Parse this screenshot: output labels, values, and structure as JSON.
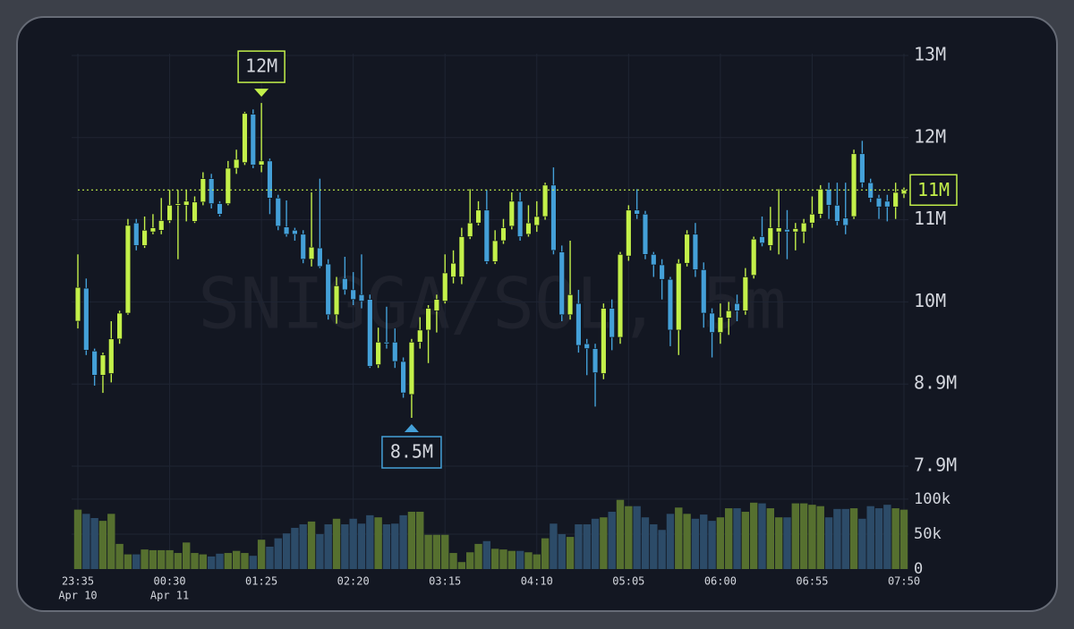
{
  "chart_data": {
    "type": "candlestick",
    "watermark": "SNIGGA/SOL, 5m",
    "categories": [
      "23:35",
      null,
      null,
      null,
      null,
      null,
      null,
      null,
      null,
      null,
      null,
      "00:30",
      null,
      null,
      null,
      null,
      null,
      null,
      null,
      null,
      null,
      null,
      "01:25",
      null,
      null,
      null,
      null,
      null,
      null,
      null,
      null,
      null,
      null,
      "02:20",
      null,
      null,
      null,
      null,
      null,
      null,
      null,
      null,
      null,
      null,
      "03:15",
      null,
      null,
      null,
      null,
      null,
      null,
      null,
      null,
      null,
      null,
      "04:10",
      null,
      null,
      null,
      null,
      null,
      null,
      null,
      null,
      null,
      null,
      "05:05",
      null,
      null,
      null,
      null,
      null,
      null,
      null,
      null,
      null,
      null,
      "06:00",
      null,
      null,
      null,
      null,
      null,
      null,
      null,
      null,
      null,
      null,
      "06:55",
      null,
      null,
      null,
      null,
      null,
      null,
      null,
      null,
      null,
      null,
      "07:50"
    ],
    "date_labels": [
      "Apr 10",
      null,
      null,
      null,
      null,
      null,
      null,
      null,
      null,
      null,
      null,
      "Apr 11",
      null,
      null,
      null,
      null,
      null,
      null,
      null,
      null,
      null,
      null,
      null,
      null,
      null,
      null,
      null,
      null,
      null,
      null,
      null,
      null,
      null,
      null,
      null,
      null,
      null,
      null,
      null,
      null,
      null,
      null,
      null,
      null,
      null,
      null,
      null,
      null,
      null,
      null,
      null,
      null,
      null,
      null,
      null,
      null,
      null,
      null,
      null,
      null,
      null,
      null,
      null,
      null,
      null,
      null,
      null,
      null,
      null,
      null,
      null,
      null,
      null,
      null,
      null,
      null,
      null,
      null,
      null,
      null,
      null,
      null,
      null,
      null,
      null,
      null,
      null,
      null,
      null,
      null,
      null,
      null,
      null,
      null,
      null,
      null,
      null,
      null,
      null,
      null
    ],
    "open": [
      9.7,
      10.11,
      9.33,
      9.03,
      9.05,
      9.48,
      9.8,
      10.92,
      10.64,
      10.81,
      10.83,
      10.95,
      11.14,
      11.14,
      10.94,
      11.18,
      11.47,
      11.16,
      11.16,
      11.6,
      11.67,
      12.27,
      11.64,
      11.69,
      11.23,
      10.87,
      10.83,
      10.78,
      10.47,
      10.61,
      10.41,
      9.78,
      10.23,
      10.09,
      10.03,
      9.97,
      9.16,
      9.44,
      9.44,
      9.2,
      8.79,
      9.44,
      9.59,
      9.83,
      9.95,
      10.25,
      10.25,
      10.75,
      10.92,
      11.08,
      10.44,
      10.7,
      10.88,
      11.19,
      10.78,
      10.89,
      11.0,
      11.39,
      10.56,
      9.78,
      9.92,
      9.42,
      9.36,
      9.05,
      9.86,
      9.5,
      10.51,
      11.08,
      11.03,
      10.53,
      10.4,
      10.22,
      9.59,
      10.42,
      10.78,
      10.34,
      9.8,
      9.56,
      9.74,
      9.92,
      9.83,
      10.27,
      10.75,
      10.64,
      10.81,
      10.84,
      10.81,
      10.81,
      10.92,
      11.03,
      11.34,
      11.14,
      10.98,
      11.0,
      11.78,
      11.42,
      11.23,
      11.19,
      11.12,
      11.28
    ],
    "high": [
      10.53,
      10.23,
      9.36,
      9.31,
      9.7,
      9.83,
      10.97,
      10.97,
      11.0,
      11.03,
      11.23,
      11.33,
      11.33,
      11.33,
      11.25,
      11.55,
      11.53,
      11.19,
      11.69,
      11.83,
      12.3,
      12.33,
      12.41,
      11.72,
      11.27,
      11.2,
      10.86,
      10.83,
      11.3,
      11.47,
      10.47,
      10.25,
      10.5,
      10.31,
      10.53,
      10.03,
      9.62,
      9.88,
      9.61,
      9.25,
      9.48,
      9.75,
      9.9,
      10.03,
      10.53,
      10.58,
      10.86,
      11.34,
      11.19,
      11.33,
      10.83,
      10.97,
      11.3,
      11.3,
      11.14,
      11.19,
      11.42,
      11.61,
      10.64,
      10.7,
      10.09,
      9.48,
      9.42,
      9.92,
      9.97,
      10.56,
      11.14,
      11.34,
      11.07,
      10.56,
      10.47,
      10.25,
      10.47,
      10.83,
      10.92,
      10.43,
      9.86,
      9.92,
      9.94,
      10.03,
      10.36,
      10.75,
      11.0,
      11.12,
      11.34,
      11.08,
      10.92,
      10.97,
      11.25,
      11.39,
      11.42,
      11.42,
      11.42,
      11.83,
      11.94,
      11.47,
      11.27,
      11.27,
      11.42,
      11.36
    ],
    "low": [
      9.61,
      9.28,
      8.9,
      8.81,
      8.94,
      9.42,
      9.78,
      10.58,
      10.61,
      10.78,
      10.78,
      10.92,
      10.47,
      10.94,
      10.92,
      11.14,
      11.1,
      11.0,
      11.14,
      11.53,
      11.64,
      11.6,
      11.55,
      11.03,
      10.83,
      10.75,
      10.7,
      10.42,
      10.38,
      10.36,
      9.72,
      9.67,
      10.03,
      9.9,
      9.86,
      9.12,
      9.12,
      9.36,
      9.12,
      8.75,
      8.5,
      9.36,
      9.18,
      9.56,
      9.92,
      10.17,
      10.16,
      10.72,
      10.89,
      10.41,
      10.41,
      10.66,
      10.84,
      10.7,
      10.75,
      10.81,
      10.96,
      10.53,
      9.7,
      9.72,
      9.31,
      9.03,
      8.64,
      8.98,
      9.34,
      9.42,
      10.45,
      10.97,
      10.47,
      10.25,
      9.97,
      9.39,
      9.28,
      10.38,
      10.25,
      9.62,
      9.25,
      9.42,
      9.53,
      9.7,
      9.78,
      10.23,
      10.63,
      10.58,
      10.53,
      10.47,
      10.58,
      10.67,
      10.86,
      10.98,
      10.97,
      10.89,
      10.78,
      10.97,
      11.36,
      11.18,
      10.97,
      10.94,
      10.97,
      11.23
    ],
    "close": [
      10.12,
      9.34,
      9.03,
      9.28,
      9.48,
      9.8,
      10.89,
      10.64,
      10.83,
      10.86,
      10.95,
      11.14,
      11.16,
      11.19,
      11.18,
      11.47,
      11.16,
      11.03,
      11.6,
      11.71,
      12.28,
      11.64,
      11.69,
      11.23,
      10.88,
      10.78,
      10.78,
      10.47,
      10.62,
      10.38,
      9.78,
      10.14,
      10.09,
      9.97,
      9.95,
      9.14,
      9.44,
      9.42,
      9.2,
      8.81,
      9.44,
      9.59,
      9.86,
      9.97,
      10.3,
      10.42,
      10.75,
      10.92,
      11.08,
      10.44,
      10.7,
      10.86,
      11.19,
      10.75,
      10.92,
      11.0,
      11.39,
      10.58,
      9.78,
      10.03,
      9.4,
      9.36,
      9.06,
      9.86,
      9.5,
      10.53,
      11.08,
      11.03,
      10.53,
      10.4,
      10.22,
      9.59,
      10.42,
      10.78,
      10.34,
      9.8,
      9.56,
      9.75,
      9.83,
      9.83,
      10.25,
      10.72,
      10.67,
      10.86,
      10.86,
      10.81,
      10.85,
      10.92,
      11.03,
      11.34,
      11.14,
      10.94,
      10.89,
      11.78,
      11.42,
      11.23,
      11.12,
      11.12,
      11.3,
      11.33
    ],
    "up_color": "#c3f04a",
    "down_color": "#44a0d8",
    "ylim": [
      7.7,
      13.2
    ],
    "yticks": [
      {
        "value": 7.9,
        "label": "7.9M"
      },
      {
        "value": 8.92,
        "label": "8.9M"
      },
      {
        "value": 9.94,
        "label": "10M"
      },
      {
        "value": 10.96,
        "label": "11M"
      },
      {
        "value": 11.98,
        "label": "12M"
      },
      {
        "value": 13.0,
        "label": "13M"
      }
    ],
    "grid": true,
    "last_price_label": "11M",
    "annotations": [
      {
        "text": "12M"
      },
      {
        "text": "8.5M"
      }
    ],
    "volume": {
      "values": [
        85000,
        79000,
        73000,
        69000,
        79000,
        36000,
        21000,
        21000,
        28000,
        27000,
        27000,
        27000,
        23000,
        38000,
        23000,
        21000,
        18000,
        22000,
        23000,
        26000,
        23000,
        19000,
        42000,
        32000,
        44000,
        51000,
        59000,
        64000,
        68000,
        50000,
        64000,
        72000,
        64000,
        72000,
        65000,
        77000,
        74000,
        64000,
        65000,
        77000,
        82000,
        82000,
        49000,
        49000,
        49000,
        23000,
        10000,
        24000,
        36000,
        40000,
        29000,
        28000,
        26000,
        26000,
        24000,
        21000,
        44000,
        65000,
        50000,
        46000,
        64000,
        64000,
        72000,
        74000,
        82000,
        99000,
        90000,
        90000,
        74000,
        64000,
        56000,
        79000,
        88000,
        79000,
        72000,
        78000,
        69000,
        74000,
        87000,
        87000,
        82000,
        95000,
        94000,
        87000,
        74000,
        74000,
        94000,
        94000,
        92000,
        90000,
        74000,
        86000,
        86000,
        87000,
        72000,
        90000,
        87000,
        92000,
        87000,
        85000
      ],
      "up_color": "#56702f",
      "down_color": "#2c4b68",
      "ylim": [
        0,
        105000
      ],
      "yticks": [
        0,
        {
          "value": 50000,
          "label": "50k"
        },
        {
          "value": 100000,
          "label": "100k"
        }
      ]
    }
  }
}
